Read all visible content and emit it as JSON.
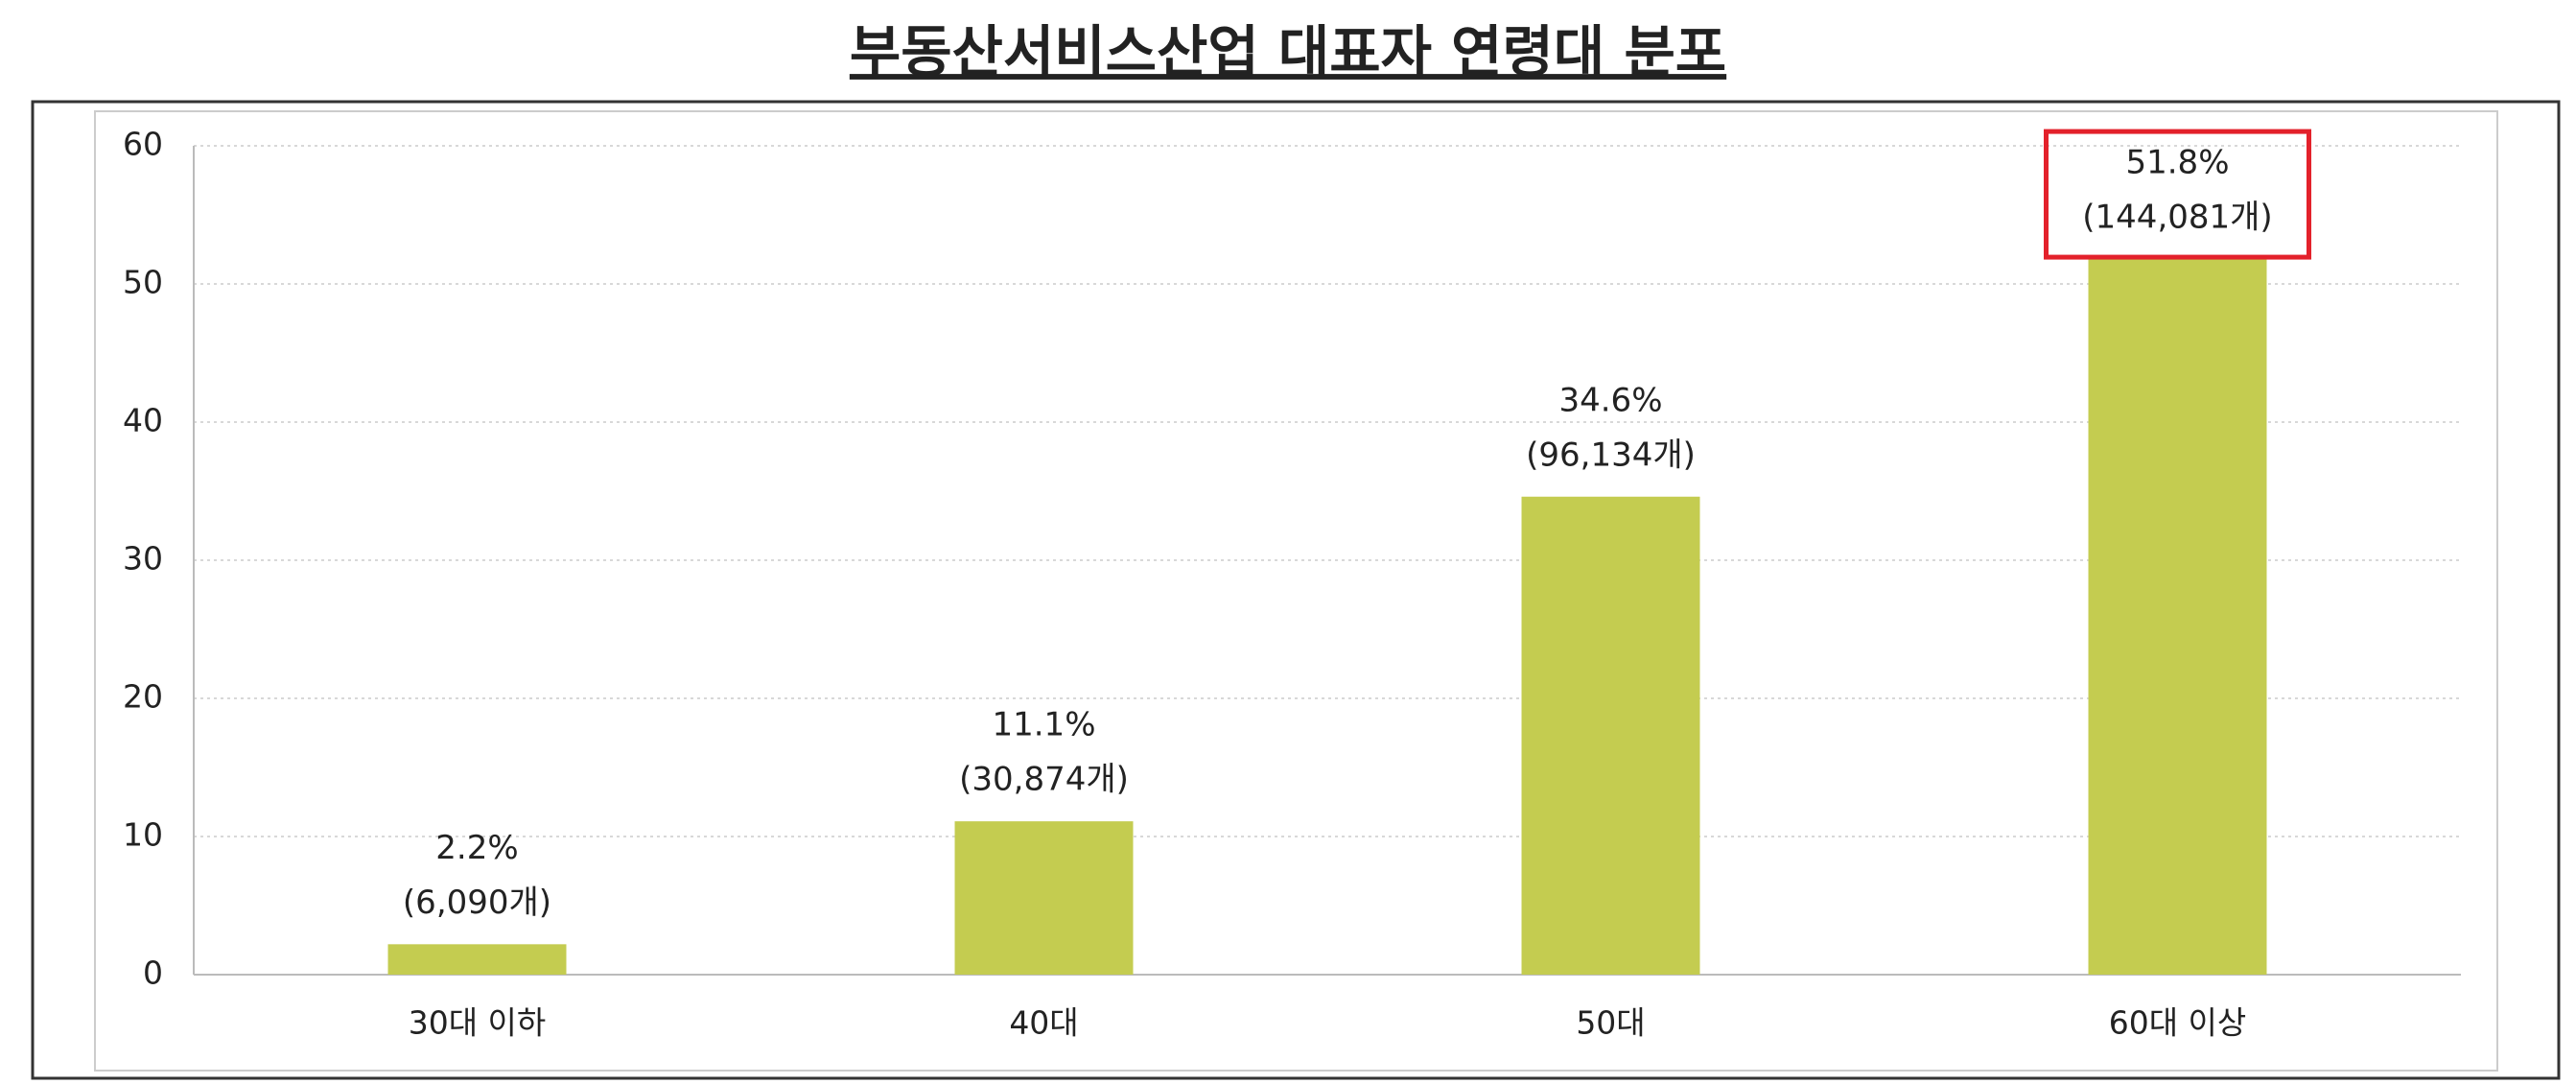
{
  "chart_data": {
    "type": "bar",
    "title": "부동산서비스산업 대표자 연령대 분포",
    "categories": [
      "30대 이하",
      "40대",
      "50대",
      "60대 이상"
    ],
    "values": [
      2.2,
      11.1,
      34.6,
      51.8
    ],
    "value_labels": [
      "2.2%",
      "11.1%",
      "34.6%",
      "51.8%"
    ],
    "count_labels": [
      "(6,090개)",
      "(30,874개)",
      "(96,134개)",
      "(144,081개)"
    ],
    "color": "#c4cc50",
    "ylim": [
      0,
      60
    ],
    "yticks": [
      0,
      10,
      20,
      30,
      40,
      50,
      60
    ],
    "grid": true,
    "highlight": {
      "index": 3,
      "color": "#e3212b"
    }
  }
}
